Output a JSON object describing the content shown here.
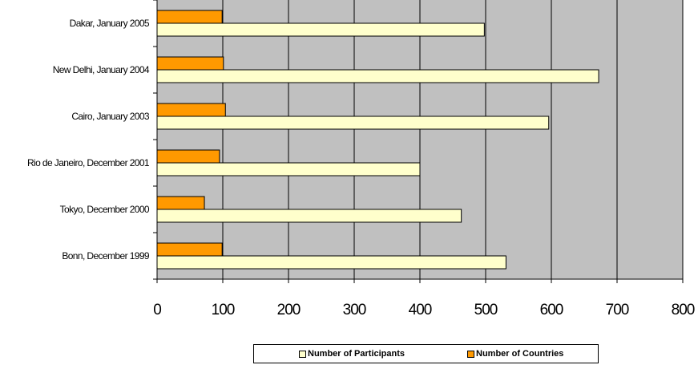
{
  "chart_data": {
    "type": "bar",
    "orientation": "horizontal",
    "categories": [
      "Dakar, January 2005",
      "New Delhi, January 2004",
      "Cairo, January 2003",
      "Rio de Janeiro, December 2001",
      "Tokyo, December 2000",
      "Bonn, December 1999"
    ],
    "series": [
      {
        "name": "Number of Countries",
        "values": [
          99,
          101,
          104,
          95,
          72,
          99
        ],
        "color": "#ff9900"
      },
      {
        "name": "Number of Participants",
        "values": [
          498,
          672,
          596,
          400,
          463,
          531
        ],
        "color": "#ffffcc"
      }
    ],
    "xlim": [
      0,
      800
    ],
    "xticks": [
      0,
      100,
      200,
      300,
      400,
      500,
      600,
      700,
      800
    ],
    "xtick_labels": [
      "0",
      "100",
      "200",
      "300",
      "400",
      "500",
      "600",
      "700",
      "800"
    ],
    "plot_background": "#c0c0c0",
    "grid": true,
    "legend_position": "bottom",
    "legend": [
      "Number of Participants",
      "Number of Countries"
    ]
  }
}
